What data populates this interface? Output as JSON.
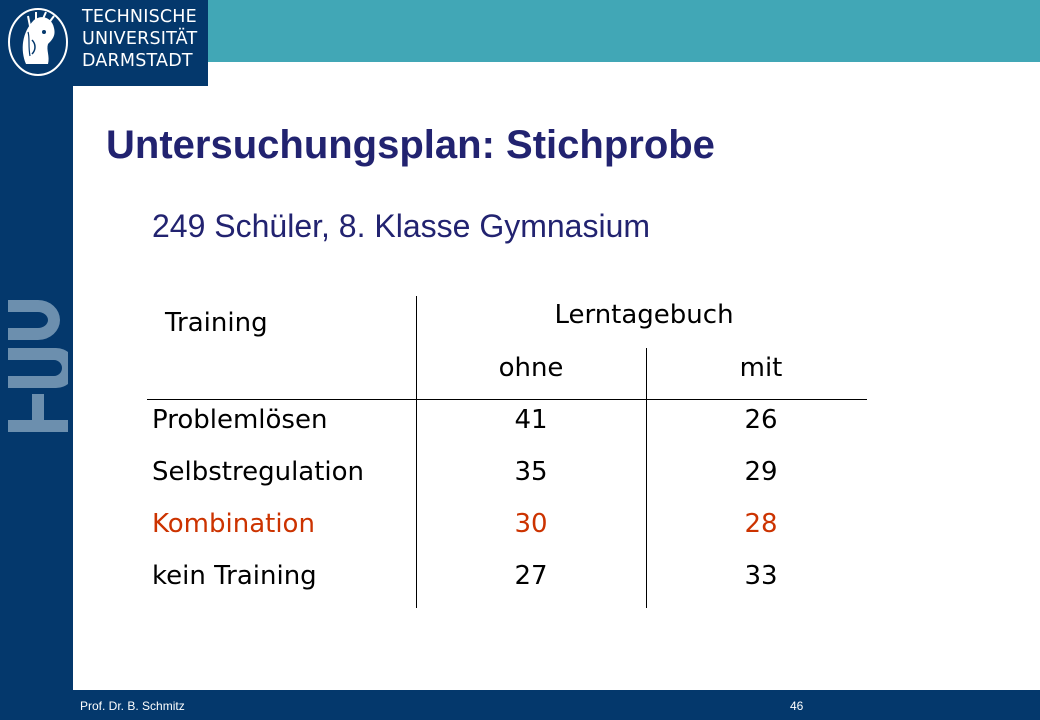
{
  "logo": {
    "lines": [
      "TECHNISCHE",
      "UNIVERSITÄT",
      "DARMSTADT"
    ],
    "side_mark": "TUD"
  },
  "slide": {
    "title": "Untersuchungsplan: Stichprobe",
    "subtitle": "249 Schüler, 8. Klasse Gymnasium"
  },
  "table": {
    "row_header_label": "Training",
    "group_header": "Lerntagebuch",
    "columns": [
      "ohne",
      "mit"
    ],
    "rows": [
      {
        "label": "Problemlösen",
        "values": [
          "41",
          "26"
        ],
        "highlight": false
      },
      {
        "label": "Selbstregulation",
        "values": [
          "35",
          "29"
        ],
        "highlight": false
      },
      {
        "label": "Kombination",
        "values": [
          "30",
          "28"
        ],
        "highlight": true
      },
      {
        "label": "kein Training",
        "values": [
          "27",
          "33"
        ],
        "highlight": false
      }
    ],
    "highlight_color": "#cc3300"
  },
  "footer": {
    "author": "Prof. Dr. B. Schmitz",
    "page": "46"
  },
  "colors": {
    "sidebar": "#04386c",
    "topbar": "#41a7b6",
    "title": "#222370"
  }
}
